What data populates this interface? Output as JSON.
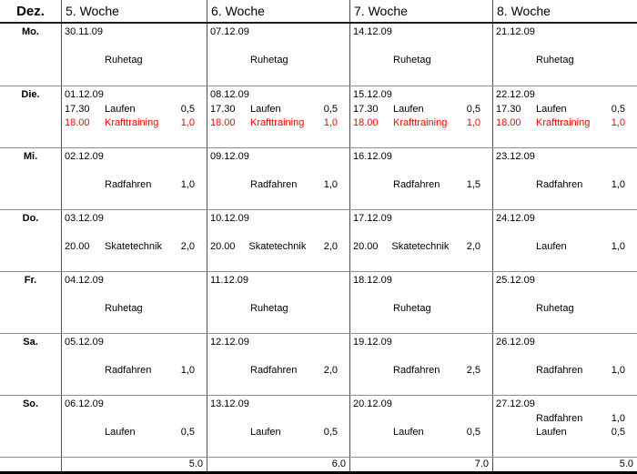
{
  "colors": {
    "text": "#000000",
    "red": "#ff0000",
    "grid_dark": "#1c1c1c",
    "grid_light": "#8f8f8f"
  },
  "header": {
    "month": "Dez.",
    "weeks": [
      "5. Woche",
      "6. Woche",
      "7. Woche",
      "8. Woche"
    ]
  },
  "days": [
    {
      "label": "Mo.",
      "cells": [
        {
          "date": "30.11.09",
          "entries": [
            {
              "activity": "Ruhetag"
            }
          ]
        },
        {
          "date": "07.12.09",
          "entries": [
            {
              "activity": "Ruhetag"
            }
          ]
        },
        {
          "date": "14.12.09",
          "entries": [
            {
              "activity": "Ruhetag"
            }
          ]
        },
        {
          "date": "21.12.09",
          "entries": [
            {
              "activity": "Ruhetag"
            }
          ]
        }
      ]
    },
    {
      "label": "Die.",
      "cells": [
        {
          "date": "01.12.09",
          "entries": [
            {
              "time": "17.30",
              "activity": "Laufen",
              "value": "0,5"
            },
            {
              "time": "18.00",
              "activity": "Krafttraining",
              "value": "1,0",
              "red": true
            }
          ]
        },
        {
          "date": "08.12.09",
          "entries": [
            {
              "time": "17.30",
              "activity": "Laufen",
              "value": "0,5"
            },
            {
              "time": "18.00",
              "activity": "Krafttraining",
              "value": "1,0",
              "red": true
            }
          ]
        },
        {
          "date": "15.12.09",
          "entries": [
            {
              "time": "17.30",
              "activity": "Laufen",
              "value": "0,5"
            },
            {
              "time": "18.00",
              "activity": "Krafttraining",
              "value": "1,0",
              "red": true
            }
          ]
        },
        {
          "date": "22.12.09",
          "entries": [
            {
              "time": "17.30",
              "activity": "Laufen",
              "value": "0,5"
            },
            {
              "time": "18.00",
              "activity": "Krafttraining",
              "value": "1,0",
              "red": true
            }
          ]
        }
      ]
    },
    {
      "label": "Mi.",
      "cells": [
        {
          "date": "02.12.09",
          "entries": [
            {
              "activity": "Radfahren",
              "value": "1,0"
            }
          ]
        },
        {
          "date": "09.12.09",
          "entries": [
            {
              "activity": "Radfahren",
              "value": "1,0"
            }
          ]
        },
        {
          "date": "16.12.09",
          "entries": [
            {
              "activity": "Radfahren",
              "value": "1,5"
            }
          ]
        },
        {
          "date": "23.12.09",
          "entries": [
            {
              "activity": "Radfahren",
              "value": "1,0"
            }
          ]
        }
      ]
    },
    {
      "label": "Do.",
      "cells": [
        {
          "date": "03.12.09",
          "entries": [
            {
              "time": "20.00",
              "activity": "Skatetechnik",
              "value": "2,0"
            }
          ]
        },
        {
          "date": "10.12.09",
          "entries": [
            {
              "time": "20.00",
              "activity": "Skatetechnik",
              "value": "2,0"
            }
          ]
        },
        {
          "date": "17.12.09",
          "entries": [
            {
              "time": "20.00",
              "activity": "Skatetechnik",
              "value": "2,0"
            }
          ]
        },
        {
          "date": "24.12.09",
          "entries": [
            {
              "activity": "Laufen",
              "value": "1,0"
            }
          ]
        }
      ]
    },
    {
      "label": "Fr.",
      "cells": [
        {
          "date": "04.12.09",
          "entries": [
            {
              "activity": "Ruhetag"
            }
          ]
        },
        {
          "date": "11.12.09",
          "entries": [
            {
              "activity": "Ruhetag"
            }
          ]
        },
        {
          "date": "18.12.09",
          "entries": [
            {
              "activity": "Ruhetag"
            }
          ]
        },
        {
          "date": "25.12.09",
          "entries": [
            {
              "activity": "Ruhetag"
            }
          ]
        }
      ]
    },
    {
      "label": "Sa.",
      "cells": [
        {
          "date": "05.12.09",
          "entries": [
            {
              "activity": "Radfahren",
              "value": "1,0"
            }
          ]
        },
        {
          "date": "12.12.09",
          "entries": [
            {
              "activity": "Radfahren",
              "value": "2,0"
            }
          ]
        },
        {
          "date": "19.12.09",
          "entries": [
            {
              "activity": "Radfahren",
              "value": "2,5"
            }
          ]
        },
        {
          "date": "26.12.09",
          "entries": [
            {
              "activity": "Radfahren",
              "value": "1,0"
            }
          ]
        }
      ]
    },
    {
      "label": "So.",
      "cells": [
        {
          "date": "06.12.09",
          "entries": [
            {
              "activity": "Laufen",
              "value": "0,5"
            }
          ]
        },
        {
          "date": "13.12.09",
          "entries": [
            {
              "activity": "Laufen",
              "value": "0,5"
            }
          ]
        },
        {
          "date": "20.12.09",
          "entries": [
            {
              "activity": "Laufen",
              "value": "0,5"
            }
          ]
        },
        {
          "date": "27.12.09",
          "entries": [
            {
              "activity": "Radfahren",
              "value": "1,0"
            },
            {
              "activity": "Laufen",
              "value": "0,5"
            }
          ]
        }
      ]
    }
  ],
  "totals": [
    "5.0",
    "6.0",
    "7.0",
    "5.0"
  ]
}
